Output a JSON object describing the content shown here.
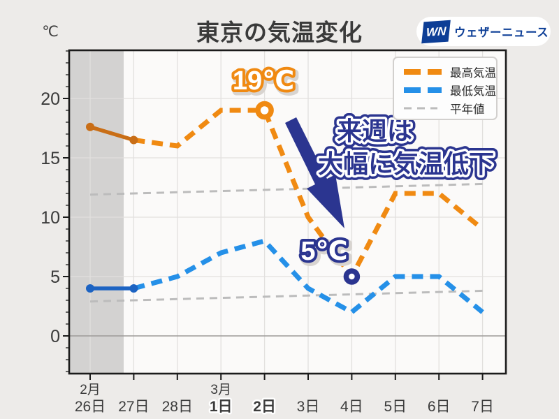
{
  "header": {
    "title": "東京の気温変化",
    "unit_label": "℃",
    "logo": {
      "mark_text": "WN",
      "name": "ウェザーニュース",
      "color": "#0d3e96"
    }
  },
  "legend": [
    {
      "label": "最高気温",
      "color": "#f08a12",
      "style": "dashed-thick"
    },
    {
      "label": "最低気温",
      "color": "#2590e8",
      "style": "dashed-thick"
    },
    {
      "label": "平年値",
      "color": "#bcbcbc",
      "style": "dashed-thin"
    }
  ],
  "annotations": {
    "peak_label": "19℃",
    "low_label": "5℃",
    "callout_line1": "来週は",
    "callout_line2": "大幅に気温低下"
  },
  "chart_data": {
    "type": "line",
    "title": "東京の気温変化",
    "ylabel": "℃",
    "x_categories": [
      "26日",
      "27日",
      "28日",
      "1日",
      "2日",
      "3日",
      "4日",
      "5日",
      "6日",
      "7日"
    ],
    "month_labels": [
      {
        "label": "2月",
        "index": 0
      },
      {
        "label": "3月",
        "index": 3
      }
    ],
    "x_label_colors": [
      "#3c3c3c",
      "#3c3c3c",
      "#3c3c3c",
      "#1d7ef2",
      "#f03a4a",
      "#3c3c3c",
      "#3c3c3c",
      "#3c3c3c",
      "#3c3c3c",
      "#3c3c3c"
    ],
    "yticks": [
      0,
      5,
      10,
      15,
      20
    ],
    "ylim": [
      -3.1,
      24.1
    ],
    "grid": true,
    "legend_position": "top-right",
    "past_period_days": 2,
    "series": [
      {
        "key": "max",
        "name": "最高気温",
        "color": "#f08a12",
        "past_color": "#c96e16",
        "style": "dashed",
        "values": [
          17.6,
          16.5,
          16,
          19,
          19,
          10,
          5,
          12,
          12,
          9
        ]
      },
      {
        "key": "min",
        "name": "最低気温",
        "color": "#2590e8",
        "past_color": "#1c63c2",
        "style": "dashed",
        "values": [
          4,
          4,
          5,
          7,
          8,
          4,
          2,
          5,
          5,
          2
        ]
      },
      {
        "key": "normal_high",
        "name": "平年値(最高)",
        "color": "#bcbcbc",
        "style": "dashed-thin",
        "values": [
          11.9,
          12.0,
          12.1,
          12.2,
          12.3,
          12.4,
          12.5,
          12.6,
          12.7,
          12.8
        ]
      },
      {
        "key": "normal_low",
        "name": "平年値(最低)",
        "color": "#bcbcbc",
        "style": "dashed-thin",
        "values": [
          2.9,
          3.0,
          3.1,
          3.2,
          3.3,
          3.4,
          3.5,
          3.6,
          3.7,
          3.8
        ]
      }
    ],
    "highlight_points": [
      {
        "series": "max",
        "index": 4,
        "value": 19,
        "ring_color": "#f08a12",
        "label": "19℃"
      },
      {
        "series": "max",
        "index": 6,
        "value": 5,
        "ring_color": "#2b3590",
        "label": "5℃"
      }
    ]
  }
}
